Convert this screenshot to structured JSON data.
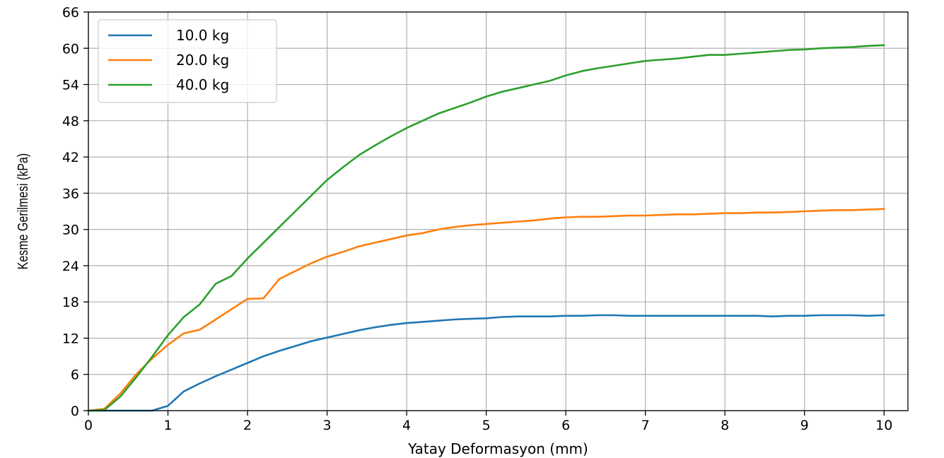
{
  "chart_data": {
    "type": "line",
    "title": "",
    "xlabel": "Yatay Deformasyon (mm)",
    "ylabel": "Kesme Gerilmesi (kPa)",
    "xlim": [
      0,
      10.3
    ],
    "ylim": [
      0,
      66
    ],
    "xticks": [
      0,
      1,
      2,
      3,
      4,
      5,
      6,
      7,
      8,
      9,
      10
    ],
    "yticks": [
      0,
      6,
      12,
      18,
      24,
      30,
      36,
      42,
      48,
      54,
      60,
      66
    ],
    "grid": true,
    "legend_position": "top-left",
    "series": [
      {
        "name": "10.0 kg",
        "color": "#1f77b4",
        "x": [
          0,
          0.2,
          0.4,
          0.6,
          0.8,
          1.0,
          1.2,
          1.4,
          1.6,
          1.8,
          2.0,
          2.2,
          2.4,
          2.6,
          2.8,
          3.0,
          3.2,
          3.4,
          3.6,
          3.8,
          4.0,
          4.2,
          4.4,
          4.6,
          4.8,
          5.0,
          5.2,
          5.4,
          5.6,
          5.8,
          6.0,
          6.2,
          6.4,
          6.6,
          6.8,
          7.0,
          7.2,
          7.4,
          7.6,
          7.8,
          8.0,
          8.2,
          8.4,
          8.6,
          8.8,
          9.0,
          9.2,
          9.4,
          9.6,
          9.8,
          10.0
        ],
        "y": [
          0,
          0,
          0,
          0,
          0,
          0.8,
          3.2,
          4.5,
          5.7,
          6.8,
          7.9,
          9.0,
          9.9,
          10.7,
          11.5,
          12.1,
          12.7,
          13.3,
          13.8,
          14.2,
          14.5,
          14.7,
          14.9,
          15.1,
          15.2,
          15.3,
          15.5,
          15.6,
          15.6,
          15.6,
          15.7,
          15.7,
          15.8,
          15.8,
          15.7,
          15.7,
          15.7,
          15.7,
          15.7,
          15.7,
          15.7,
          15.7,
          15.7,
          15.6,
          15.7,
          15.7,
          15.8,
          15.8,
          15.8,
          15.7,
          15.8
        ]
      },
      {
        "name": "20.0 kg",
        "color": "#ff7f0e",
        "x": [
          0,
          0.2,
          0.4,
          0.6,
          0.8,
          1.0,
          1.2,
          1.4,
          1.6,
          1.8,
          2.0,
          2.2,
          2.4,
          2.6,
          2.8,
          3.0,
          3.2,
          3.4,
          3.6,
          3.8,
          4.0,
          4.2,
          4.4,
          4.6,
          4.8,
          5.0,
          5.2,
          5.4,
          5.6,
          5.8,
          6.0,
          6.2,
          6.4,
          6.6,
          6.8,
          7.0,
          7.2,
          7.4,
          7.6,
          7.8,
          8.0,
          8.2,
          8.4,
          8.6,
          8.8,
          9.0,
          9.2,
          9.4,
          9.6,
          9.8,
          10.0
        ],
        "y": [
          0,
          0.3,
          2.8,
          6.0,
          8.6,
          10.9,
          12.8,
          13.4,
          15.1,
          16.8,
          18.5,
          18.6,
          21.8,
          23.1,
          24.4,
          25.5,
          26.3,
          27.2,
          27.8,
          28.4,
          29.0,
          29.4,
          30.0,
          30.4,
          30.7,
          30.9,
          31.1,
          31.3,
          31.5,
          31.8,
          32.0,
          32.1,
          32.1,
          32.2,
          32.3,
          32.3,
          32.4,
          32.5,
          32.5,
          32.6,
          32.7,
          32.7,
          32.8,
          32.8,
          32.9,
          33.0,
          33.1,
          33.2,
          33.2,
          33.3,
          33.4
        ]
      },
      {
        "name": "40.0 kg",
        "color": "#2ca02c",
        "x": [
          0,
          0.2,
          0.4,
          0.6,
          0.8,
          1.0,
          1.2,
          1.4,
          1.6,
          1.8,
          2.0,
          2.2,
          2.4,
          2.6,
          2.8,
          3.0,
          3.2,
          3.4,
          3.6,
          3.8,
          4.0,
          4.2,
          4.4,
          4.6,
          4.8,
          5.0,
          5.2,
          5.4,
          5.6,
          5.8,
          6.0,
          6.2,
          6.4,
          6.6,
          6.8,
          7.0,
          7.2,
          7.4,
          7.6,
          7.8,
          8.0,
          8.2,
          8.4,
          8.6,
          8.8,
          9.0,
          9.2,
          9.4,
          9.6,
          9.8,
          10.0
        ],
        "y": [
          0,
          0.1,
          2.3,
          5.5,
          8.9,
          12.5,
          15.5,
          17.6,
          21.0,
          22.3,
          25.2,
          27.8,
          30.4,
          33.0,
          35.6,
          38.2,
          40.3,
          42.3,
          43.9,
          45.4,
          46.8,
          48.0,
          49.2,
          50.1,
          51.0,
          52.0,
          52.8,
          53.4,
          54.0,
          54.6,
          55.5,
          56.2,
          56.7,
          57.1,
          57.5,
          57.9,
          58.1,
          58.3,
          58.6,
          58.9,
          58.9,
          59.1,
          59.3,
          59.5,
          59.7,
          59.8,
          60.0,
          60.1,
          60.2,
          60.4,
          60.5
        ]
      }
    ]
  }
}
